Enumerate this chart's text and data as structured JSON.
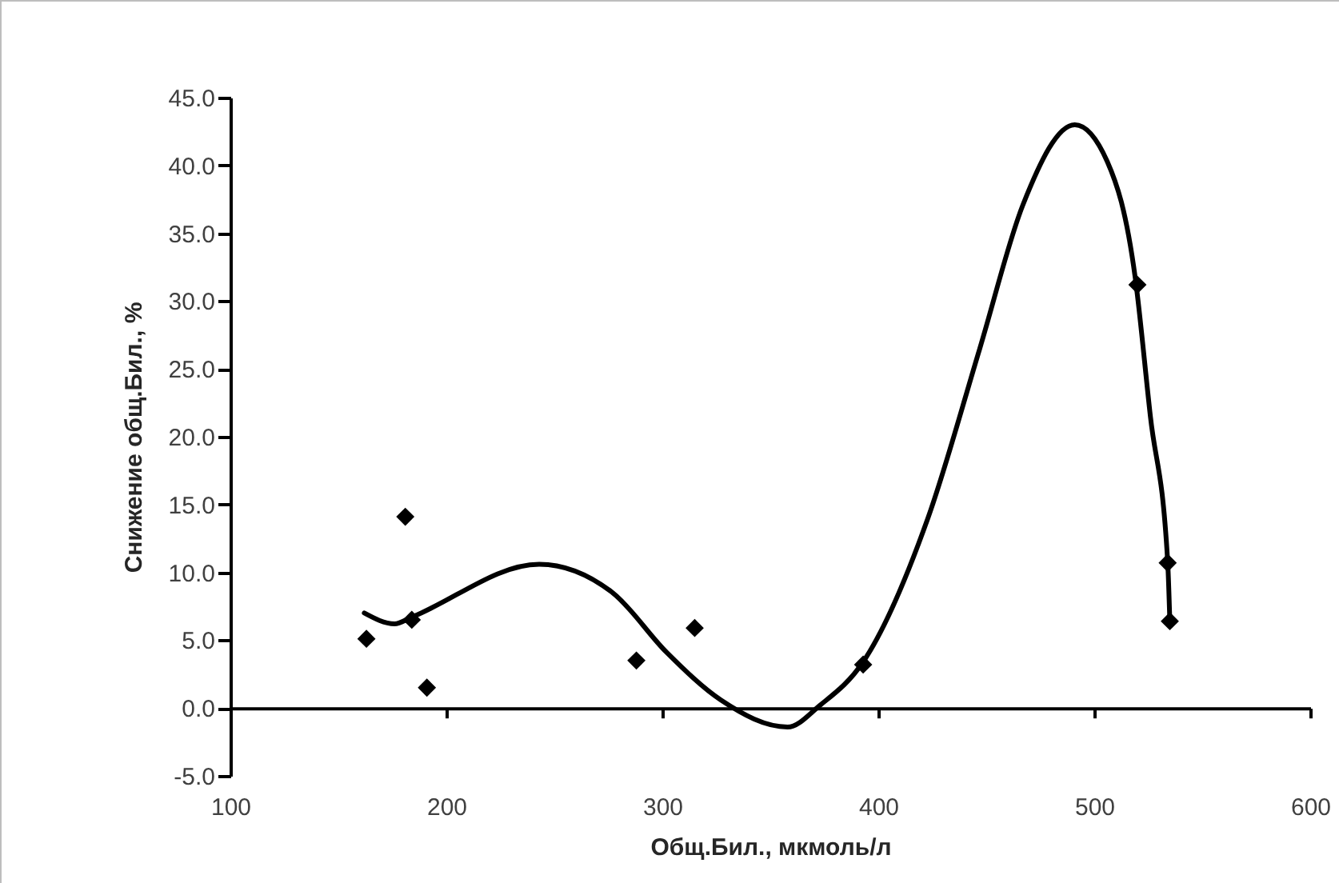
{
  "chart_data": {
    "type": "scatter",
    "xlabel": "Общ.Бил., мкмоль/л",
    "ylabel": "Снижение общ.Бил., %",
    "xlim": [
      100,
      600
    ],
    "xticks": [
      100,
      200,
      300,
      400,
      500,
      600
    ],
    "ylim": [
      -5,
      45
    ],
    "yticks": [
      {
        "value": -5,
        "label": "-5.0"
      },
      {
        "value": 0,
        "label": "0.0"
      },
      {
        "value": 5,
        "label": "5.0"
      },
      {
        "value": 10,
        "label": "10.0"
      },
      {
        "value": 15,
        "label": "15.0"
      },
      {
        "value": 20,
        "label": "20.0"
      },
      {
        "value": 25,
        "label": "25.0"
      },
      {
        "value": 30,
        "label": "30.0"
      },
      {
        "value": 35,
        "label": "35.0"
      },
      {
        "value": 40,
        "label": "40.0"
      },
      {
        "value": 45,
        "label": "45.0"
      }
    ],
    "marker": "diamond",
    "series": [
      {
        "color": "#000000",
        "x": [
          163,
          181,
          184,
          191,
          288,
          315,
          393,
          520,
          534,
          535
        ],
        "values": [
          5.1,
          14.1,
          6.5,
          1.5,
          3.5,
          5.9,
          3.2,
          31.2,
          10.7,
          6.4
        ]
      },
      {
        "type": "line",
        "marker": "none",
        "color": "#000000",
        "line_style": "solid",
        "x": [
          162,
          176,
          184,
          243,
          277,
          302,
          327,
          358,
          373,
          393,
          423,
          447,
          467,
          491,
          506,
          519,
          526,
          534,
          535
        ],
        "values": [
          7.0,
          6.2,
          6.7,
          10.6,
          8.5,
          4.1,
          0.6,
          -1.4,
          0.2,
          3.4,
          14.0,
          26.5,
          37.1,
          43.0,
          40.3,
          31.7,
          21.5,
          10.8,
          6.4
        ]
      }
    ]
  }
}
